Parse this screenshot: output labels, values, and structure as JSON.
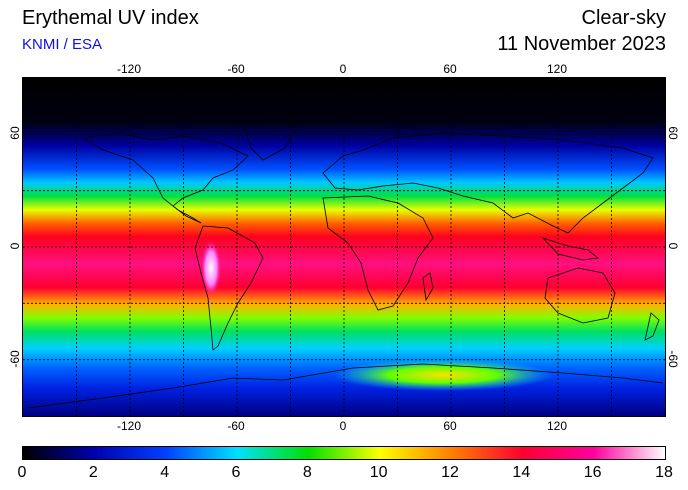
{
  "header": {
    "title": "Erythemal UV index",
    "source": "KNMI / ESA",
    "mode": "Clear-sky",
    "date": "11 November 2023"
  },
  "map": {
    "projection": "equirectangular",
    "lon_ticks": [
      "-120",
      "-60",
      "0",
      "60",
      "120"
    ],
    "lon_tick_values": [
      -120,
      -60,
      0,
      60,
      120
    ],
    "lat_ticks": [
      "60",
      "0",
      "-60"
    ],
    "lat_tick_values": [
      60,
      0,
      -60
    ],
    "grid": "dotted lines every 30 degrees",
    "colors": {
      "background": "#000000",
      "coastline": "#000000"
    }
  },
  "colorbar": {
    "labels": [
      "0",
      "2",
      "4",
      "6",
      "8",
      "10",
      "12",
      "14",
      "16",
      "18"
    ],
    "min": 0,
    "max": 18,
    "stops": [
      "#000000",
      "#0000b0",
      "#0040ff",
      "#00e0ff",
      "#00e000",
      "#ffff00",
      "#ff8000",
      "#ff0030",
      "#ff00a0",
      "#ffffff"
    ]
  }
}
